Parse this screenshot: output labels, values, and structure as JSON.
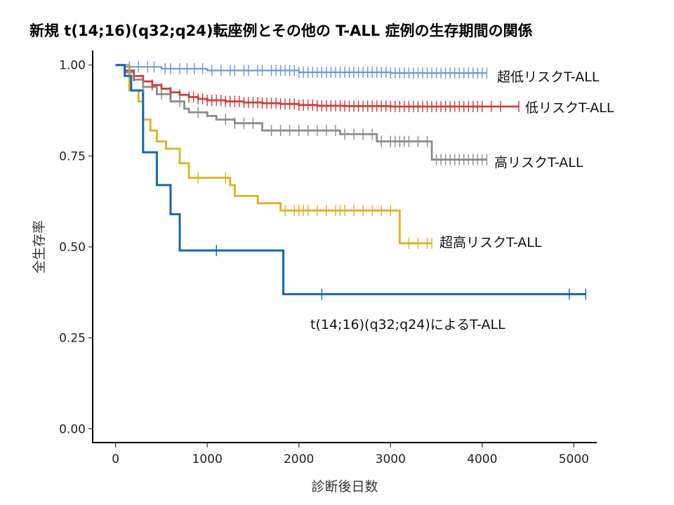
{
  "chart_data": {
    "type": "line",
    "title": "新規 t(14;16)(q32;q24)転座例とその他の T-ALL 症例の生存期間の関係",
    "xlabel": "診断後日数",
    "ylabel": "全生存率",
    "xlim": [
      -250,
      5250
    ],
    "ylim": [
      -0.04,
      1.04
    ],
    "x_ticks": [
      0,
      1000,
      2000,
      3000,
      4000,
      5000
    ],
    "y_ticks": [
      0.0,
      0.25,
      0.5,
      0.75,
      1.0
    ],
    "x_tick_labels": [
      "0",
      "1000",
      "2000",
      "3000",
      "4000",
      "5000"
    ],
    "y_tick_labels": [
      "0.00",
      "0.25",
      "0.50",
      "0.75",
      "1.00"
    ],
    "grid": false,
    "legend": "direct labels at line ends",
    "series": [
      {
        "name": "超低リスクT-ALL",
        "color": "#6f98d8",
        "steps": [
          [
            0,
            1.0
          ],
          [
            120,
            0.995
          ],
          [
            500,
            0.99
          ],
          [
            1000,
            0.985
          ],
          [
            2000,
            0.98
          ],
          [
            3000,
            0.978
          ],
          [
            4050,
            0.978
          ]
        ],
        "censor": [
          150,
          250,
          350,
          420,
          540,
          600,
          700,
          780,
          860,
          950,
          1050,
          1150,
          1250,
          1300,
          1400,
          1450,
          1550,
          1600,
          1700,
          1750,
          1800,
          1850,
          1900,
          1950,
          2000,
          2050,
          2100,
          2150,
          2200,
          2250,
          2300,
          2350,
          2400,
          2450,
          2500,
          2550,
          2600,
          2650,
          2700,
          2750,
          2800,
          2850,
          2900,
          2950,
          3000,
          3050,
          3100,
          3150,
          3200,
          3250,
          3300,
          3350,
          3400,
          3450,
          3500,
          3550,
          3600,
          3650,
          3700,
          3750,
          3800,
          3850,
          3900,
          3950,
          4000,
          4050
        ]
      },
      {
        "name": "低リスクT-ALL",
        "color": "#c9403d",
        "steps": [
          [
            0,
            1.0
          ],
          [
            100,
            0.985
          ],
          [
            200,
            0.97
          ],
          [
            300,
            0.955
          ],
          [
            400,
            0.945
          ],
          [
            500,
            0.935
          ],
          [
            600,
            0.925
          ],
          [
            700,
            0.918
          ],
          [
            800,
            0.912
          ],
          [
            900,
            0.907
          ],
          [
            1000,
            0.903
          ],
          [
            1200,
            0.9
          ],
          [
            1400,
            0.897
          ],
          [
            1600,
            0.895
          ],
          [
            1800,
            0.893
          ],
          [
            2000,
            0.89
          ],
          [
            2200,
            0.888
          ],
          [
            2500,
            0.887
          ],
          [
            3000,
            0.886
          ],
          [
            4400,
            0.886
          ]
        ],
        "censor": [
          200,
          300,
          400,
          500,
          600,
          700,
          800,
          850,
          900,
          950,
          1000,
          1050,
          1100,
          1150,
          1200,
          1250,
          1300,
          1350,
          1400,
          1450,
          1500,
          1550,
          1600,
          1650,
          1700,
          1750,
          1800,
          1850,
          1900,
          1950,
          2000,
          2050,
          2100,
          2150,
          2200,
          2250,
          2300,
          2350,
          2400,
          2450,
          2500,
          2550,
          2600,
          2650,
          2700,
          2750,
          2800,
          2850,
          2900,
          2950,
          3000,
          3050,
          3100,
          3150,
          3200,
          3250,
          3300,
          3350,
          3400,
          3450,
          3500,
          3550,
          3600,
          3650,
          3700,
          3750,
          3800,
          3850,
          3900,
          3950,
          4000,
          4100,
          4200,
          4400
        ]
      },
      {
        "name": "高リスクT-ALL",
        "color": "#8c8c8c",
        "steps": [
          [
            0,
            1.0
          ],
          [
            100,
            0.98
          ],
          [
            200,
            0.96
          ],
          [
            300,
            0.94
          ],
          [
            450,
            0.92
          ],
          [
            600,
            0.9
          ],
          [
            750,
            0.88
          ],
          [
            800,
            0.87
          ],
          [
            1000,
            0.86
          ],
          [
            1100,
            0.85
          ],
          [
            1300,
            0.84
          ],
          [
            1600,
            0.82
          ],
          [
            2450,
            0.81
          ],
          [
            2850,
            0.79
          ],
          [
            3200,
            0.79
          ],
          [
            3450,
            0.74
          ],
          [
            4050,
            0.74
          ]
        ],
        "censor": [
          150,
          300,
          500,
          700,
          900,
          1200,
          1300,
          1400,
          1500,
          1700,
          1800,
          1900,
          2000,
          2100,
          2200,
          2300,
          2400,
          2500,
          2600,
          2700,
          2800,
          2900,
          3000,
          3050,
          3100,
          3150,
          3200,
          3300,
          3400,
          3500,
          3550,
          3600,
          3650,
          3700,
          3750,
          3800,
          3850,
          3900,
          3950,
          4000,
          4050
        ]
      },
      {
        "name": "超高リスクT-ALL",
        "color": "#e0b01c",
        "steps": [
          [
            0,
            1.0
          ],
          [
            150,
            0.93
          ],
          [
            250,
            0.9
          ],
          [
            300,
            0.85
          ],
          [
            380,
            0.82
          ],
          [
            450,
            0.79
          ],
          [
            550,
            0.77
          ],
          [
            700,
            0.73
          ],
          [
            800,
            0.69
          ],
          [
            1250,
            0.67
          ],
          [
            1300,
            0.64
          ],
          [
            1550,
            0.62
          ],
          [
            1800,
            0.6
          ],
          [
            3100,
            0.51
          ],
          [
            3450,
            0.51
          ]
        ],
        "censor": [
          900,
          1200,
          1850,
          1950,
          2000,
          2050,
          2100,
          2200,
          2300,
          2400,
          2450,
          2500,
          2600,
          2700,
          2800,
          2900,
          3000,
          3200,
          3300,
          3400,
          3450
        ]
      },
      {
        "name": "t(14;16)(q32;q24)によるT-ALL",
        "color": "#1565b5",
        "steps": [
          [
            0,
            1.0
          ],
          [
            100,
            0.97
          ],
          [
            170,
            0.93
          ],
          [
            300,
            0.76
          ],
          [
            450,
            0.67
          ],
          [
            600,
            0.59
          ],
          [
            700,
            0.49
          ],
          [
            1830,
            0.37
          ],
          [
            5130,
            0.37
          ]
        ],
        "censor": [
          1100,
          2250,
          4950,
          5130
        ]
      }
    ]
  }
}
